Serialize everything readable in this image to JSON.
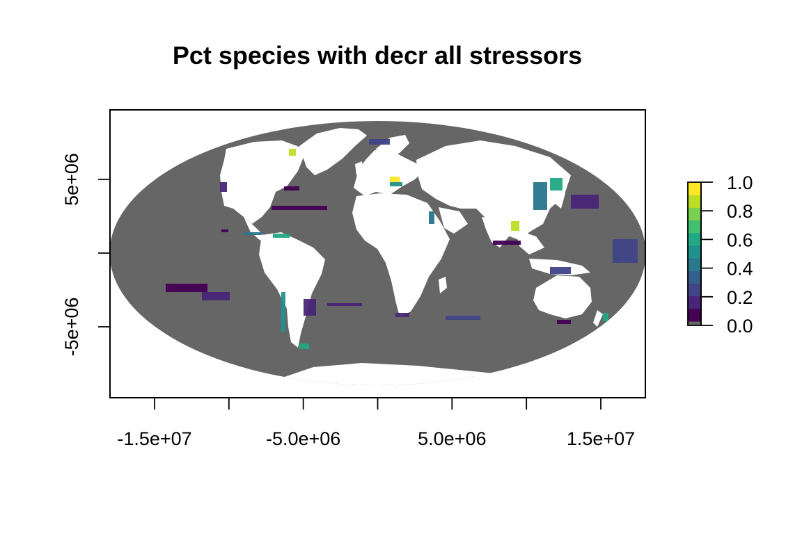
{
  "chart_data": {
    "type": "heatmap",
    "title": "Pct species with decr all stressors",
    "projection": "Mollweide",
    "x_ticks": [
      -15000000.0,
      -10000000.0,
      -5000000.0,
      0,
      5000000.0,
      10000000.0,
      15000000.0
    ],
    "x_tick_labels": [
      "-1.5e+07",
      "",
      "-5.0e+06",
      "",
      "5.0e+06",
      "",
      "1.5e+07"
    ],
    "y_ticks": [
      5000000.0,
      0,
      -5000000.0
    ],
    "y_tick_labels": [
      "5e+06",
      "",
      "-5e+06"
    ],
    "xlim": [
      -18100000.0,
      18100000.0
    ],
    "ylim": [
      -9700000.0,
      9800000.0
    ],
    "legend": {
      "position": "right",
      "range": [
        0.0,
        1.0
      ],
      "tick_labels": [
        "1.0",
        "0.8",
        "0.6",
        "0.4",
        "0.2",
        "0.0"
      ],
      "palette": "viridis",
      "colors": [
        "#440154",
        "#482576",
        "#414487",
        "#35608D",
        "#2A788E",
        "#21918C",
        "#22A884",
        "#43BF71",
        "#7AD151",
        "#BBDF27",
        "#FDE725"
      ],
      "zero_color": "#666666"
    },
    "ocean_color": "#666666",
    "land_color": "#ffffff"
  }
}
